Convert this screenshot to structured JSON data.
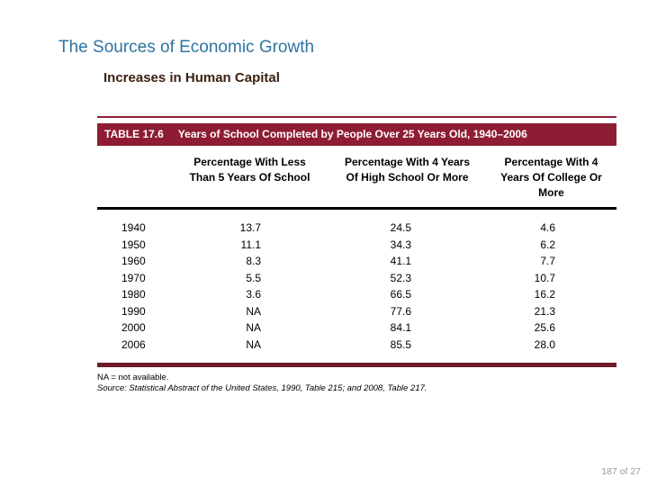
{
  "slide": {
    "title": "The Sources of Economic Growth",
    "subtitle": "Increases in Human Capital",
    "page_indicator": "187 of 27"
  },
  "table": {
    "label": "TABLE 17.6",
    "caption": "Years of School Completed by People Over 25 Years Old, 1940–2006",
    "column_headers": {
      "less_than_5_years": "Percentage With Less Than 5 Years Of School",
      "hs_4_years_or_more": "Percentage With 4 Years Of High School Or More",
      "college_4_years_or_more": "Percentage With 4 Years Of College Or More"
    },
    "rows": [
      {
        "year": "1940",
        "less5": "13.7",
        "hs4": "24.5",
        "college4": "4.6"
      },
      {
        "year": "1950",
        "less5": "11.1",
        "hs4": "34.3",
        "college4": "6.2"
      },
      {
        "year": "1960",
        "less5": "8.3",
        "hs4": "41.1",
        "college4": "7.7"
      },
      {
        "year": "1970",
        "less5": "5.5",
        "hs4": "52.3",
        "college4": "10.7"
      },
      {
        "year": "1980",
        "less5": "3.6",
        "hs4": "66.5",
        "college4": "16.2"
      },
      {
        "year": "1990",
        "less5": "NA",
        "hs4": "77.6",
        "college4": "21.3"
      },
      {
        "year": "2000",
        "less5": "NA",
        "hs4": "84.1",
        "college4": "25.6"
      },
      {
        "year": "2006",
        "less5": "NA",
        "hs4": "85.5",
        "college4": "28.0"
      }
    ],
    "notes": {
      "na": "NA = not available.",
      "source": "Source:  Statistical Abstract of the United States, 1990, Table 215; and 2008, Table 217."
    }
  },
  "colors": {
    "title_blue": "#2E74A1",
    "subtitle_brown": "#3A2112",
    "table_bar_maroon": "#8E1D33",
    "bottom_rule_maroon": "#6E1A2A",
    "header_rule_black": "#000000",
    "page_indicator_gray": "#999999"
  }
}
